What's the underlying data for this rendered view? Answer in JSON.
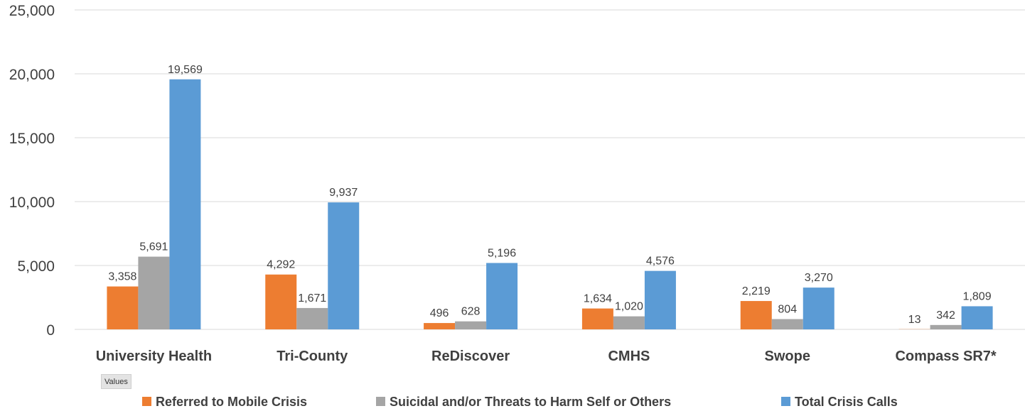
{
  "chart_data": {
    "type": "bar",
    "categories": [
      "University Health",
      "Tri-County",
      "ReDiscover",
      "CMHS",
      "Swope",
      "Compass SR7*"
    ],
    "series": [
      {
        "name": "Referred to Mobile Crisis",
        "color": "#ED7D31",
        "values": [
          3358,
          4292,
          496,
          1634,
          2219,
          13
        ]
      },
      {
        "name": "Suicidal and/or Threats to Harm Self or Others",
        "color": "#A5A5A5",
        "values": [
          5691,
          1671,
          628,
          1020,
          804,
          342
        ]
      },
      {
        "name": "Total Crisis Calls",
        "color": "#5B9BD5",
        "values": [
          19569,
          9937,
          5196,
          4576,
          3270,
          1809
        ]
      }
    ],
    "data_labels": [
      [
        "3,358",
        "4,292",
        "496",
        "1,634",
        "2,219",
        "13"
      ],
      [
        "5,691",
        "1,671",
        "628",
        "1,020",
        "804",
        "342"
      ],
      [
        "19,569",
        "9,937",
        "5,196",
        "4,576",
        "3,270",
        "1,809"
      ]
    ],
    "yticks": [
      "0",
      "5,000",
      "10,000",
      "15,000",
      "20,000",
      "25,000"
    ],
    "ylim": [
      0,
      25000
    ],
    "grid": true,
    "legend_position": "bottom",
    "title": "",
    "xlabel": "",
    "ylabel": ""
  },
  "field_button": {
    "label": "Values"
  }
}
